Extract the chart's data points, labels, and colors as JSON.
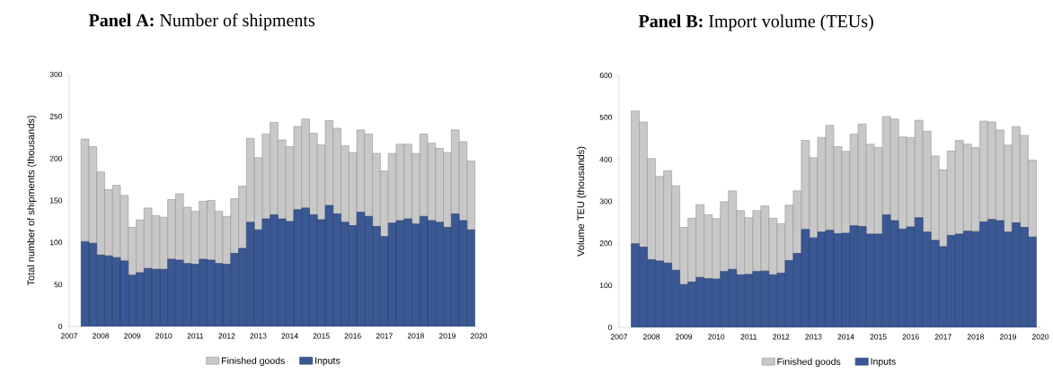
{
  "chart_data": [
    {
      "type": "bar",
      "title": "**Panel A:** Number of shipments",
      "ylabel": "Total number of shipments (thousands)",
      "stacked": true,
      "legend": "bottom",
      "x": [
        2007.5,
        2007.75,
        2008,
        2008.25,
        2008.5,
        2008.75,
        2009,
        2009.25,
        2009.5,
        2009.75,
        2010,
        2010.25,
        2010.5,
        2010.75,
        2011,
        2011.25,
        2011.5,
        2011.75,
        2012,
        2012.25,
        2012.5,
        2012.75,
        2013,
        2013.25,
        2013.5,
        2013.75,
        2014,
        2014.25,
        2014.5,
        2014.75,
        2015,
        2015.25,
        2015.5,
        2015.75,
        2016,
        2016.25,
        2016.5,
        2016.75,
        2017,
        2017.25,
        2017.5,
        2017.75,
        2018,
        2018.25,
        2018.5,
        2018.75,
        2019,
        2019.25,
        2019.5,
        2019.75
      ],
      "xlim": [
        2007,
        2020
      ],
      "xticks": [
        2007,
        2008,
        2009,
        2010,
        2011,
        2012,
        2013,
        2014,
        2015,
        2016,
        2017,
        2018,
        2019,
        2020
      ],
      "ylim": [
        0,
        300
      ],
      "yticks": [
        0,
        50,
        100,
        150,
        200,
        250,
        300
      ],
      "series": [
        {
          "name": "Inputs",
          "color": "#3a5894",
          "values": [
            101,
            99,
            85,
            84,
            82,
            78,
            61,
            64,
            69,
            68,
            68,
            80,
            79,
            75,
            74,
            80,
            79,
            75,
            74,
            87,
            93,
            124,
            115,
            128,
            133,
            128,
            125,
            139,
            141,
            133,
            127,
            144,
            134,
            124,
            120,
            136,
            131,
            119,
            107,
            123,
            126,
            128,
            122,
            131,
            126,
            124,
            118,
            134,
            126,
            115
          ]
        },
        {
          "name": "Finished goods",
          "color": "#c8c8c8",
          "values": [
            122,
            115,
            99,
            79,
            86,
            78,
            57,
            63,
            72,
            64,
            62,
            71,
            79,
            67,
            63,
            69,
            71,
            62,
            57,
            65,
            74,
            100,
            86,
            101,
            110,
            94,
            89,
            99,
            106,
            97,
            89,
            101,
            102,
            91,
            87,
            98,
            98,
            87,
            78,
            83,
            91,
            89,
            84,
            98,
            92,
            88,
            89,
            100,
            94,
            82
          ]
        }
      ]
    },
    {
      "type": "bar",
      "title": "**Panel B:** Import volume (TEUs)",
      "ylabel": "Volume TEU (thousands)",
      "stacked": true,
      "legend": "bottom",
      "x": [
        2007.5,
        2007.75,
        2008,
        2008.25,
        2008.5,
        2008.75,
        2009,
        2009.25,
        2009.5,
        2009.75,
        2010,
        2010.25,
        2010.5,
        2010.75,
        2011,
        2011.25,
        2011.5,
        2011.75,
        2012,
        2012.25,
        2012.5,
        2012.75,
        2013,
        2013.25,
        2013.5,
        2013.75,
        2014,
        2014.25,
        2014.5,
        2014.75,
        2015,
        2015.25,
        2015.5,
        2015.75,
        2016,
        2016.25,
        2016.5,
        2016.75,
        2017,
        2017.25,
        2017.5,
        2017.75,
        2018,
        2018.25,
        2018.5,
        2018.75,
        2019,
        2019.25,
        2019.5,
        2019.75
      ],
      "xlim": [
        2007,
        2020
      ],
      "xticks": [
        2007,
        2008,
        2009,
        2010,
        2011,
        2012,
        2013,
        2014,
        2015,
        2016,
        2017,
        2018,
        2019,
        2020
      ],
      "ylim": [
        0,
        600
      ],
      "yticks": [
        0,
        100,
        200,
        300,
        400,
        500,
        600
      ],
      "series": [
        {
          "name": "Inputs",
          "color": "#3a5894",
          "values": [
            199,
            191,
            161,
            158,
            153,
            136,
            102,
            108,
            119,
            116,
            115,
            133,
            138,
            125,
            126,
            133,
            134,
            125,
            129,
            159,
            176,
            233,
            213,
            227,
            231,
            223,
            224,
            242,
            240,
            222,
            222,
            268,
            254,
            234,
            239,
            261,
            227,
            207,
            192,
            219,
            222,
            229,
            228,
            251,
            257,
            254,
            227,
            249,
            238,
            215
          ]
        },
        {
          "name": "Finished goods",
          "color": "#c8c8c8",
          "values": [
            316,
            298,
            241,
            201,
            220,
            201,
            136,
            152,
            173,
            152,
            144,
            166,
            187,
            153,
            135,
            145,
            155,
            135,
            118,
            132,
            149,
            212,
            191,
            225,
            250,
            207,
            195,
            218,
            244,
            214,
            206,
            234,
            242,
            219,
            213,
            232,
            240,
            201,
            183,
            201,
            223,
            207,
            200,
            240,
            232,
            216,
            207,
            229,
            219,
            183
          ]
        }
      ]
    }
  ]
}
